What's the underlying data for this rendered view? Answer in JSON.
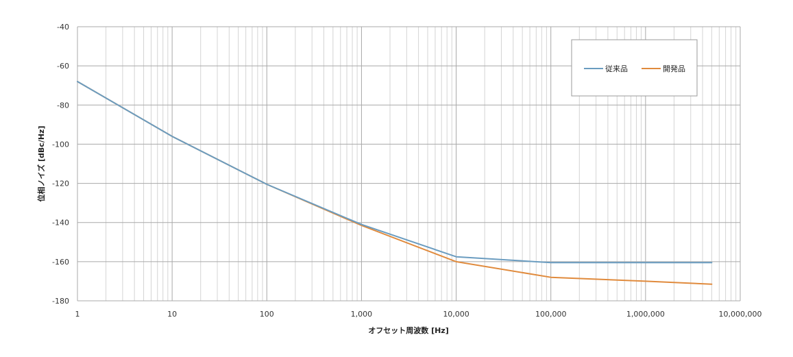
{
  "chart_data": {
    "type": "line",
    "xscale": "log",
    "xlim": [
      1,
      10000000
    ],
    "ylim": [
      -180,
      -40
    ],
    "x_ticks": [
      1,
      10,
      100,
      1000,
      10000,
      100000,
      1000000,
      10000000
    ],
    "x_tick_labels": [
      "1",
      "10",
      "100",
      "1,000",
      "10,000",
      "100,000",
      "1,000,000",
      "10,000,000"
    ],
    "y_ticks": [
      -40,
      -60,
      -80,
      -100,
      -120,
      -140,
      -160,
      -180
    ],
    "y_tick_labels": [
      "-40",
      "-60",
      "-80",
      "-100",
      "-120",
      "-140",
      "-160",
      "-180"
    ],
    "xlabel": "オフセット周波数 [Hz]",
    "ylabel": "位相ノイズ [dBc/Hz]",
    "grid": true,
    "legend_position": "top-right",
    "series": [
      {
        "name": "従来品",
        "color": "#6a9cc0",
        "x": [
          1,
          10,
          100,
          1000,
          10000,
          100000,
          1000000,
          5000000
        ],
        "y": [
          -68,
          -96,
          -120.5,
          -141,
          -157.5,
          -160.5,
          -160.5,
          -160.5
        ]
      },
      {
        "name": "開発品",
        "color": "#e08a3c",
        "x": [
          1,
          10,
          100,
          1000,
          10000,
          100000,
          1000000,
          5000000
        ],
        "y": [
          -68,
          -96,
          -120.5,
          -141.5,
          -160,
          -168,
          -170,
          -171.5
        ]
      }
    ]
  }
}
